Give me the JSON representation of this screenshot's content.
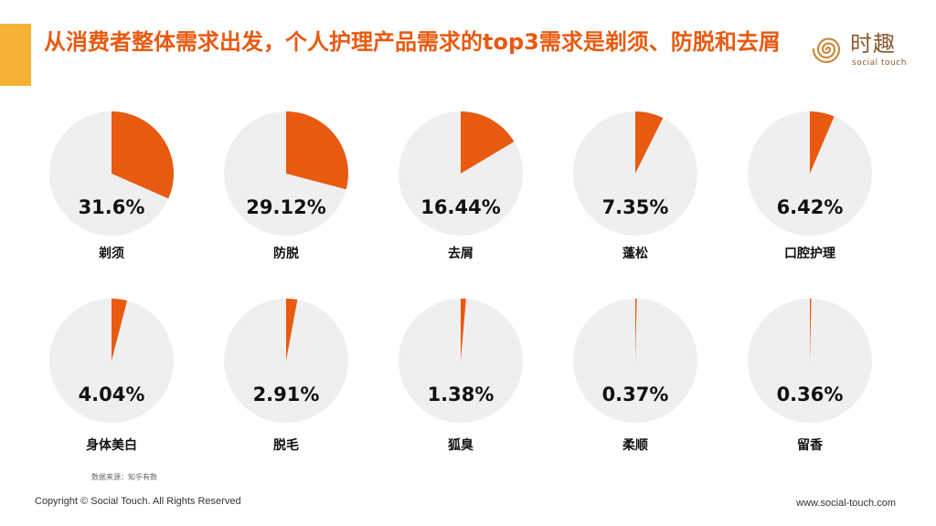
{
  "header": {
    "title": "从消费者整体需求出发，个人护理产品需求的top3需求是剃须、防脱和去屑"
  },
  "logo": {
    "name": "时趣",
    "sub": "social touch",
    "icon": "spiral-icon"
  },
  "colors": {
    "accent": "#e85a10",
    "bar": "#f6b234",
    "pie_background": "#efefef"
  },
  "chart_data": {
    "type": "pie",
    "items": [
      {
        "label": "剃须",
        "value": 31.6,
        "display": "31.6%"
      },
      {
        "label": "防脱",
        "value": 29.12,
        "display": "29.12%"
      },
      {
        "label": "去屑",
        "value": 16.44,
        "display": "16.44%"
      },
      {
        "label": "蓬松",
        "value": 7.35,
        "display": "7.35%"
      },
      {
        "label": "口腔护理",
        "value": 6.42,
        "display": "6.42%"
      },
      {
        "label": "身体美白",
        "value": 4.04,
        "display": "4.04%"
      },
      {
        "label": "脱毛",
        "value": 2.91,
        "display": "2.91%"
      },
      {
        "label": "狐臭",
        "value": 1.38,
        "display": "1.38%"
      },
      {
        "label": "柔顺",
        "value": 0.37,
        "display": "0.37%"
      },
      {
        "label": "留香",
        "value": 0.36,
        "display": "0.36%"
      }
    ]
  },
  "source": "数据来源：知乎有数",
  "footer": {
    "copyright": "Copyright © Social Touch. All Rights Reserved",
    "website": "www.social-touch.com"
  }
}
